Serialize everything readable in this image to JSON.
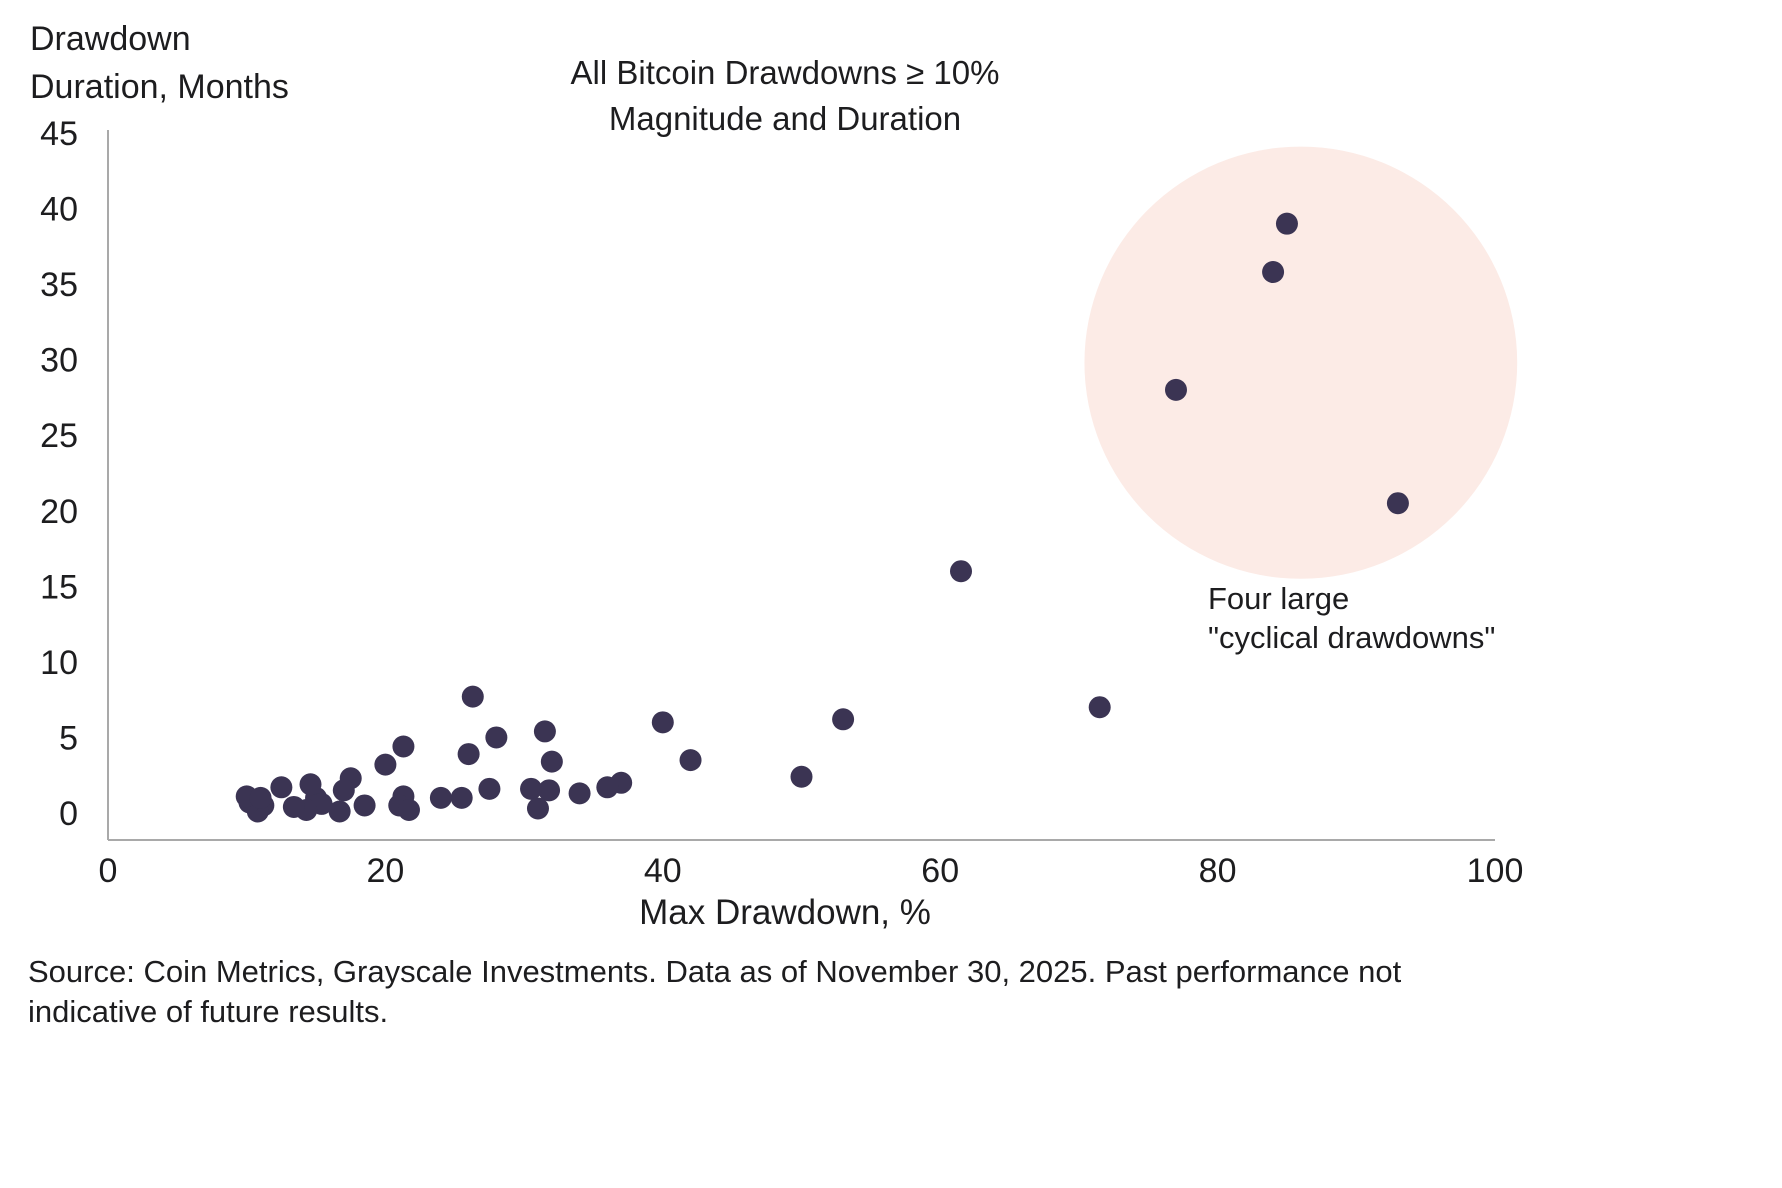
{
  "chart": {
    "y_axis_title_line1": "Drawdown",
    "y_axis_title_line2": "Duration, Months",
    "title_line1": "All Bitcoin Drawdowns ≥ 10%",
    "title_line2": "Magnitude and Duration",
    "x_axis_title": "Max Drawdown, %"
  },
  "annotation": {
    "line1": "Four large",
    "line2": "\"cyclical drawdowns\""
  },
  "footer": {
    "source_line1": "Source: Coin Metrics, Grayscale Investments. Data as of November 30, 2025. Past performance not",
    "source_line2": "indicative of future results."
  },
  "chart_data": {
    "type": "scatter",
    "title": "All Bitcoin Drawdowns ≥ 10% Magnitude and Duration",
    "xlabel": "Max Drawdown, %",
    "ylabel": "Drawdown Duration, Months",
    "xlim": [
      0,
      100
    ],
    "ylim": [
      0,
      45
    ],
    "x_ticks": [
      0,
      20,
      40,
      60,
      80,
      100
    ],
    "y_ticks": [
      0,
      5,
      10,
      15,
      20,
      25,
      30,
      35,
      40,
      45
    ],
    "grid": false,
    "legend": "none",
    "point_color": "#3b3453",
    "axis_color": "#a9a9a9",
    "highlight": {
      "label": "Four large \"cyclical drawdowns\"",
      "fill": "#fcebe6",
      "center": [
        86,
        29.8
      ],
      "radius_x_units": 15.6,
      "radius_y_units": 14.3,
      "points": [
        [
          85,
          39
        ],
        [
          84,
          35.8
        ],
        [
          77,
          28
        ],
        [
          93,
          20.5
        ]
      ]
    },
    "points": [
      [
        61.5,
        16
      ],
      [
        71.5,
        7
      ],
      [
        53,
        6.2
      ],
      [
        50,
        2.4
      ],
      [
        40,
        6
      ],
      [
        42,
        3.5
      ],
      [
        26.3,
        7.7
      ],
      [
        28,
        5
      ],
      [
        31.5,
        5.4
      ],
      [
        32,
        3.4
      ],
      [
        26,
        3.9
      ],
      [
        21.3,
        4.4
      ],
      [
        20,
        3.2
      ],
      [
        37,
        2
      ],
      [
        36,
        1.7
      ],
      [
        34,
        1.3
      ],
      [
        31.8,
        1.5
      ],
      [
        30.5,
        1.6
      ],
      [
        27.5,
        1.6
      ],
      [
        25.5,
        1
      ],
      [
        24,
        1
      ],
      [
        31,
        0.3
      ],
      [
        21.3,
        1.1
      ],
      [
        21,
        0.5
      ],
      [
        21.7,
        0.2
      ],
      [
        17.5,
        2.3
      ],
      [
        17,
        1.5
      ],
      [
        18.5,
        0.5
      ],
      [
        16.7,
        0.1
      ],
      [
        15,
        1
      ],
      [
        15.4,
        0.6
      ],
      [
        14.6,
        1.9
      ],
      [
        14.3,
        0.2
      ],
      [
        13.4,
        0.4
      ],
      [
        12.5,
        1.7
      ],
      [
        11.2,
        0.5
      ],
      [
        10.8,
        0.1
      ],
      [
        10.2,
        0.7
      ],
      [
        10,
        1.1
      ],
      [
        11,
        1
      ]
    ]
  }
}
